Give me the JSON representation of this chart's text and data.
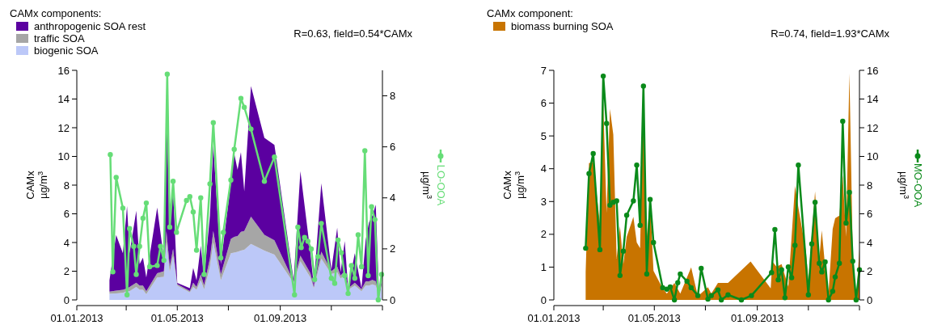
{
  "chart_data": [
    {
      "type": "area",
      "stacked": true,
      "legend": "top left",
      "legend_title": "CAMx components:",
      "annotations": [
        "R=0.63, field=0.54*CAMx"
      ],
      "ylabel": "CAMx\nµg/m$^{3}$",
      "y2label": "µg/m$^{3}$",
      "line_style": "solid",
      "xlim": [
        "2013-01-01",
        "2014-01-01"
      ],
      "xticks": [
        {
          "value": "2013-01-01",
          "label": "01.01.2013"
        },
        {
          "value": "2013-03-01",
          "label": null
        },
        {
          "value": "2013-05-01",
          "label": "01.05.2013"
        },
        {
          "value": "2013-07-01",
          "label": null
        },
        {
          "value": "2013-09-01",
          "label": "01.09.2013"
        },
        {
          "value": "2013-11-01",
          "label": null
        },
        {
          "value": "2014-01-01",
          "label": null
        }
      ],
      "ylim": [
        0,
        16
      ],
      "yticks": [
        0,
        2,
        4,
        6,
        8,
        10,
        12,
        14,
        16
      ],
      "y2lim": [
        0,
        9
      ],
      "y2ticks": [
        0,
        2,
        4,
        6,
        8
      ],
      "x": [
        "2013-02-09",
        "2013-02-17",
        "2013-02-25",
        "2013-03-02",
        "2013-03-05",
        "2013-03-13",
        "2013-03-17",
        "2013-03-21",
        "2013-03-25",
        "2013-04-07",
        "2013-04-15",
        "2013-04-18",
        "2013-04-22",
        "2013-04-26",
        "2013-05-01",
        "2013-05-16",
        "2013-05-20",
        "2013-05-24",
        "2013-05-29",
        "2013-06-02",
        "2013-06-09",
        "2013-06-13",
        "2013-06-22",
        "2013-07-04",
        "2013-07-08",
        "2013-07-12",
        "2013-07-16",
        "2013-07-20",
        "2013-07-28",
        "2013-08-13",
        "2013-08-25",
        "2013-09-17",
        "2013-09-25",
        "2013-10-07",
        "2013-10-11",
        "2013-10-20",
        "2013-11-01",
        "2013-11-08",
        "2013-11-12",
        "2013-11-17",
        "2013-11-21",
        "2013-11-29",
        "2013-12-07",
        "2013-12-12",
        "2013-12-16",
        "2013-12-20",
        "2013-12-24",
        "2013-12-28",
        "2013-12-31"
      ],
      "series": [
        {
          "name": "biogenic SOA",
          "color": "#bcc8f8",
          "values": [
            0.43,
            0.45,
            0.5,
            0.6,
            0.6,
            0.9,
            0.7,
            0.7,
            0.4,
            1.56,
            1.6,
            4.0,
            1.93,
            3.06,
            1.0,
            0.52,
            0.9,
            0.7,
            1.37,
            0.73,
            2.3,
            4.0,
            1.37,
            3.25,
            3.3,
            3.35,
            3.44,
            3.5,
            3.9,
            3.44,
            3.15,
            1.18,
            2.69,
            1.56,
            0.8,
            2.87,
            1.8,
            1.93,
            1.5,
            1.7,
            0.7,
            1.0,
            0.6,
            1.0,
            1.0,
            1.09,
            1.0,
            0.24,
            1.0
          ]
        },
        {
          "name": "traffic SOA",
          "color": "#a6a6a6",
          "values": [
            0.15,
            0.2,
            0.2,
            0.2,
            0.3,
            0.3,
            0.3,
            0.3,
            0.2,
            0.3,
            0.4,
            0.8,
            0.4,
            0.5,
            0.1,
            0.1,
            0.3,
            0.2,
            0.4,
            0.3,
            0.6,
            0.8,
            0.4,
            1.0,
            1.1,
            1.1,
            1.3,
            1.3,
            1.9,
            1.1,
            1.0,
            0.1,
            0.4,
            0.3,
            0.1,
            0.5,
            0.2,
            0.4,
            0.2,
            0.3,
            0.1,
            0.2,
            0.15,
            0.3,
            0.3,
            0.3,
            0.3,
            0.05,
            0.1
          ]
        },
        {
          "name": "anthropogenic SOA rest",
          "color": "#5b00a0",
          "values": [
            0.79,
            3.87,
            2.55,
            5.74,
            2.35,
            5.01,
            1.5,
            1.95,
            0.96,
            4.58,
            0.87,
            8.8,
            2.8,
            4.01,
            0.08,
            0.19,
            1.02,
            0.47,
            2.0,
            0.53,
            2.98,
            5.96,
            0.73,
            3.88,
            5.8,
            4.62,
            5.56,
            2.77,
            9.1,
            6.76,
            6.65,
            0.09,
            5.88,
            1.39,
            0.1,
            4.76,
            0.1,
            2.7,
            0.23,
            2.1,
            0.01,
            2.05,
            0.06,
            2.89,
            4.11,
            4.49,
            5.33,
            0.05,
            0.27
          ]
        },
        {
          "name": "LO-OOA",
          "type": "line",
          "axis": "y2",
          "marker": "circle",
          "color": "#66dd77",
          "x": [
            "2013-02-10",
            "2013-02-13",
            "2013-02-17",
            "2013-02-25",
            "2013-03-02",
            "2013-03-05",
            "2013-03-10",
            "2013-03-13",
            "2013-03-17",
            "2013-03-21",
            "2013-03-25",
            "2013-03-29",
            "2013-04-07",
            "2013-04-11",
            "2013-04-15",
            "2013-04-19",
            "2013-04-22",
            "2013-04-26",
            "2013-04-30",
            "2013-05-12",
            "2013-05-16",
            "2013-05-20",
            "2013-05-24",
            "2013-05-29",
            "2013-06-02",
            "2013-06-09",
            "2013-06-13",
            "2013-06-22",
            "2013-06-25",
            "2013-07-04",
            "2013-07-08",
            "2013-07-16",
            "2013-07-20",
            "2013-07-28",
            "2013-08-13",
            "2013-08-25",
            "2013-09-18",
            "2013-09-22",
            "2013-09-26",
            "2013-09-30",
            "2013-10-04",
            "2013-10-08",
            "2013-10-12",
            "2013-10-16",
            "2013-10-20",
            "2013-11-01",
            "2013-11-05",
            "2013-11-09",
            "2013-11-13",
            "2013-11-17",
            "2013-11-21",
            "2013-11-25",
            "2013-11-29",
            "2013-12-03",
            "2013-12-07",
            "2013-12-11",
            "2013-12-15",
            "2013-12-19",
            "2013-12-23",
            "2013-12-27",
            "2013-12-31"
          ],
          "values": [
            5.7,
            1.1,
            4.8,
            3.6,
            0.2,
            2.8,
            2.1,
            1.0,
            2.1,
            3.2,
            3.8,
            1.3,
            1.35,
            2.1,
            1.55,
            8.85,
            2.85,
            4.65,
            2.65,
            3.9,
            4.05,
            3.45,
            1.95,
            4.0,
            1.0,
            4.55,
            6.95,
            1.65,
            2.65,
            4.7,
            5.9,
            7.9,
            7.55,
            6.7,
            4.65,
            5.6,
            0.2,
            2.85,
            2.05,
            2.45,
            2.3,
            2.0,
            0.8,
            1.7,
            3.0,
            0.85,
            0.65,
            2.35,
            1.85,
            0.95,
            0.25,
            1.35,
            0.85,
            2.55,
            1.3,
            5.85,
            0.95,
            3.65,
            3.15,
            0,
            1.0
          ]
        }
      ]
    },
    {
      "type": "area",
      "legend": "top left",
      "legend_title": "CAMx component:",
      "annotations": [
        "R=0.74, field=1.93*CAMx"
      ],
      "ylabel": "CAMx\nµg/m$^{3}$",
      "y2label": "µg/m$^{3}$",
      "line_style": "solid",
      "xlim": [
        "2013-01-01",
        "2014-01-01"
      ],
      "xticks": [
        {
          "value": "2013-01-01",
          "label": "01.01.2013"
        },
        {
          "value": "2013-03-01",
          "label": null
        },
        {
          "value": "2013-05-01",
          "label": "01.05.2013"
        },
        {
          "value": "2013-07-01",
          "label": null
        },
        {
          "value": "2013-09-01",
          "label": "01.09.2013"
        },
        {
          "value": "2013-11-01",
          "label": null
        },
        {
          "value": "2014-01-01",
          "label": null
        }
      ],
      "ylim": [
        0,
        7
      ],
      "yticks": [
        0,
        1,
        2,
        3,
        4,
        5,
        6,
        7
      ],
      "y2lim": [
        0,
        16
      ],
      "y2ticks": [
        0,
        2,
        4,
        6,
        8,
        10,
        12,
        14,
        16
      ],
      "x": [
        "2013-02-08",
        "2013-02-12",
        "2013-02-17",
        "2013-02-25",
        "2013-03-01",
        "2013-03-05",
        "2013-03-09",
        "2013-03-13",
        "2013-03-17",
        "2013-03-21",
        "2013-03-25",
        "2013-03-29",
        "2013-04-06",
        "2013-04-10",
        "2013-04-14",
        "2013-04-18",
        "2013-04-22",
        "2013-04-26",
        "2013-04-30",
        "2013-05-11",
        "2013-05-16",
        "2013-05-25",
        "2013-06-01",
        "2013-06-14",
        "2013-06-22",
        "2013-07-04",
        "2013-07-08",
        "2013-07-16",
        "2013-07-28",
        "2013-08-24",
        "2013-09-17",
        "2013-09-19",
        "2013-09-24",
        "2013-09-30",
        "2013-10-08",
        "2013-10-16",
        "2013-10-20",
        "2013-10-29",
        "2013-11-01",
        "2013-11-09",
        "2013-11-14",
        "2013-11-17",
        "2013-11-21",
        "2013-11-25",
        "2013-11-30",
        "2013-12-03",
        "2013-12-08",
        "2013-12-12",
        "2013-12-16",
        "2013-12-20",
        "2013-12-24",
        "2013-12-28",
        "2014-01-01"
      ],
      "series": [
        {
          "name": "biomass burning SOA",
          "color": "#c87400",
          "values": [
            0.85,
            4.17,
            4.21,
            2.32,
            6.02,
            2.65,
            5.82,
            5.04,
            1.26,
            2.24,
            1.09,
            1.92,
            2.53,
            1.75,
            1.58,
            6.27,
            1.92,
            3.06,
            0.89,
            0.35,
            0.19,
            0.52,
            0.19,
            0.99,
            0.11,
            0.39,
            0.19,
            0.52,
            0.52,
            1.17,
            0.35,
            1.17,
            1.01,
            1.09,
            0.4,
            3.48,
            2.82,
            1.5,
            0.6,
            3.31,
            1.26,
            2.12,
            1.01,
            0.19,
            2.16,
            2.49,
            2.57,
            3.8,
            1.92,
            6.9,
            1.42,
            0,
            1.55
          ]
        },
        {
          "name": "MO-OOA",
          "type": "line",
          "axis": "y2",
          "marker": "circle",
          "color": "#0a8a1a",
          "x": [
            "2013-02-08",
            "2013-02-12",
            "2013-02-17",
            "2013-02-25",
            "2013-03-01",
            "2013-03-05",
            "2013-03-09",
            "2013-03-13",
            "2013-03-17",
            "2013-03-21",
            "2013-03-25",
            "2013-03-29",
            "2013-04-06",
            "2013-04-10",
            "2013-04-14",
            "2013-04-18",
            "2013-04-22",
            "2013-04-26",
            "2013-04-30",
            "2013-05-11",
            "2013-05-16",
            "2013-05-20",
            "2013-05-25",
            "2013-05-29",
            "2013-06-01",
            "2013-06-09",
            "2013-06-14",
            "2013-06-22",
            "2013-06-26",
            "2013-07-04",
            "2013-07-08",
            "2013-07-16",
            "2013-07-20",
            "2013-07-28",
            "2013-08-13",
            "2013-08-25",
            "2013-09-18",
            "2013-09-22",
            "2013-09-26",
            "2013-09-30",
            "2013-10-04",
            "2013-10-08",
            "2013-10-12",
            "2013-10-16",
            "2013-10-20",
            "2013-11-01",
            "2013-11-05",
            "2013-11-09",
            "2013-11-14",
            "2013-11-17",
            "2013-11-21",
            "2013-11-25",
            "2013-11-30",
            "2013-12-03",
            "2013-12-08",
            "2013-12-12",
            "2013-12-16",
            "2013-12-20",
            "2013-12-24",
            "2013-12-28",
            "2014-01-01"
          ],
          "values": [
            3.6,
            8.8,
            10.2,
            3.5,
            15.6,
            12.3,
            6.6,
            6.8,
            6.9,
            1.7,
            3.4,
            5.9,
            6.9,
            9.4,
            5.2,
            14.9,
            1.8,
            7.0,
            4.0,
            0.85,
            0.75,
            0.9,
            0,
            1.2,
            1.8,
            1.3,
            0.85,
            0.3,
            2.2,
            0.05,
            0.3,
            0.7,
            0,
            0.35,
            0,
            0.3,
            1.9,
            4.9,
            1.4,
            2.1,
            0.15,
            2.3,
            1.55,
            3.8,
            9.4,
            0.35,
            3.9,
            6.8,
            2.55,
            1.95,
            2.65,
            0,
            0.6,
            1.6,
            2.55,
            12.45,
            5.35,
            7.5,
            2.7,
            0,
            2.1
          ]
        }
      ]
    }
  ]
}
